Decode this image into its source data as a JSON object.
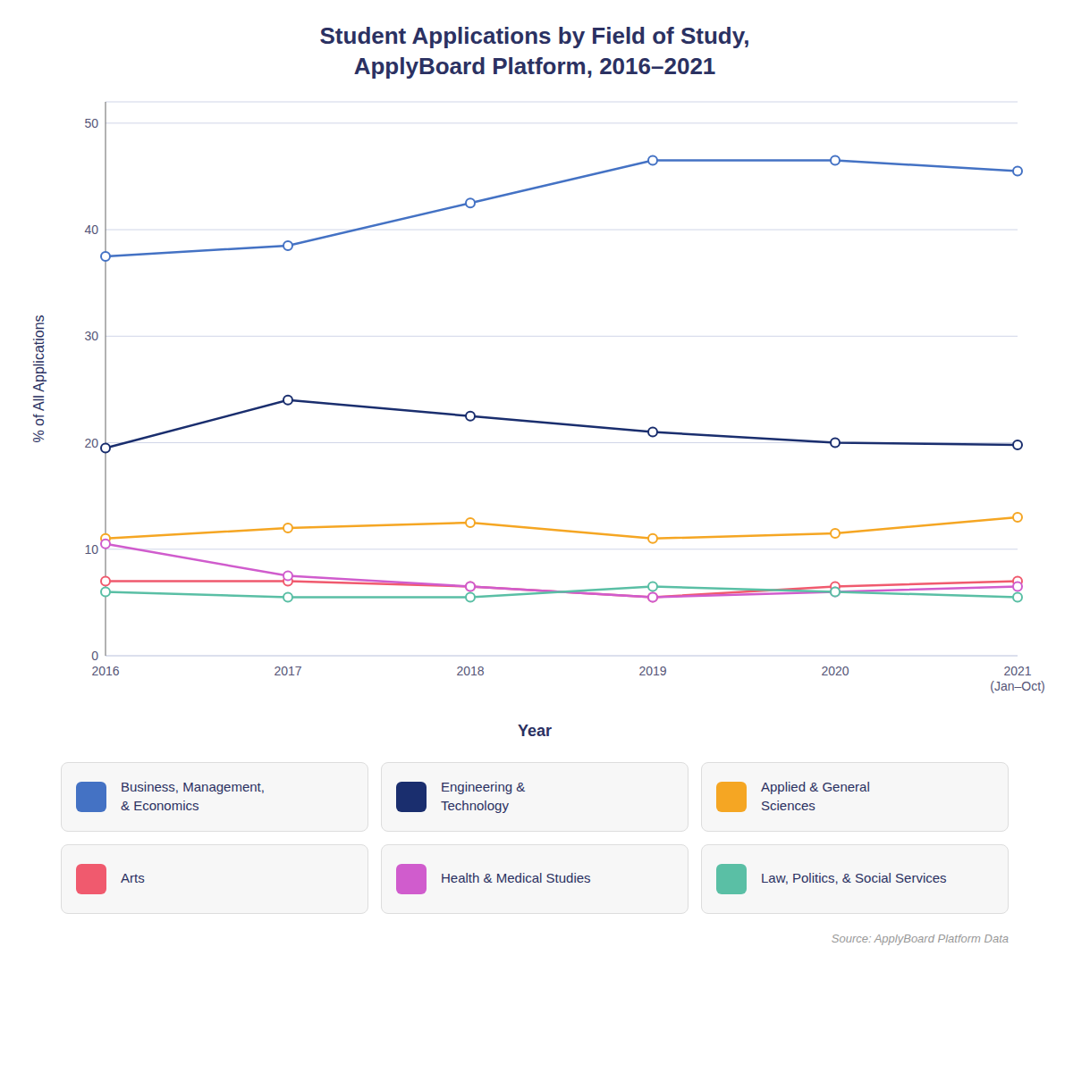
{
  "chart_data": {
    "type": "line",
    "title": "Student Applications by Field of Study,\nApplyBoard Platform, 2016–2021",
    "x_label": "Year",
    "y_label": "% of All Applications",
    "categories": [
      "2016",
      "2017",
      "2018",
      "2019",
      "2020",
      "2021\n(Jan–Oct)"
    ],
    "series": [
      {
        "name": "Business, Management,\n& Economics",
        "color": "#4472c4",
        "values": [
          37.5,
          38.5,
          42.5,
          46.5,
          46.5,
          45.5
        ],
        "marker": "circle"
      },
      {
        "name": "Engineering &\nTechnology",
        "color": "#1a2e6e",
        "values": [
          19.5,
          24.0,
          22.5,
          21.0,
          20.0,
          19.8
        ],
        "marker": "circle"
      },
      {
        "name": "Applied & General\nSciences",
        "color": "#f5a623",
        "values": [
          11.0,
          12.0,
          12.5,
          11.0,
          11.5,
          13.0
        ],
        "marker": "circle"
      },
      {
        "name": "Arts",
        "color": "#f05a6e",
        "values": [
          7.0,
          7.0,
          6.5,
          5.5,
          6.5,
          7.0
        ],
        "marker": "circle"
      },
      {
        "name": "Health & Medical Studies",
        "color": "#d05ccd",
        "values": [
          10.5,
          7.5,
          6.5,
          5.5,
          6.0,
          6.5
        ],
        "marker": "circle"
      },
      {
        "name": "Law, Politics, & Social Services",
        "color": "#5abfa5",
        "values": [
          6.0,
          5.5,
          5.5,
          6.5,
          6.0,
          5.5
        ],
        "marker": "circle"
      }
    ],
    "ylim": [
      0,
      52
    ],
    "yticks": [
      0,
      10,
      20,
      30,
      40,
      50
    ],
    "grid": true,
    "legend": "bottom",
    "annotations": [
      "Source: ApplyBoard Platform Data"
    ]
  }
}
